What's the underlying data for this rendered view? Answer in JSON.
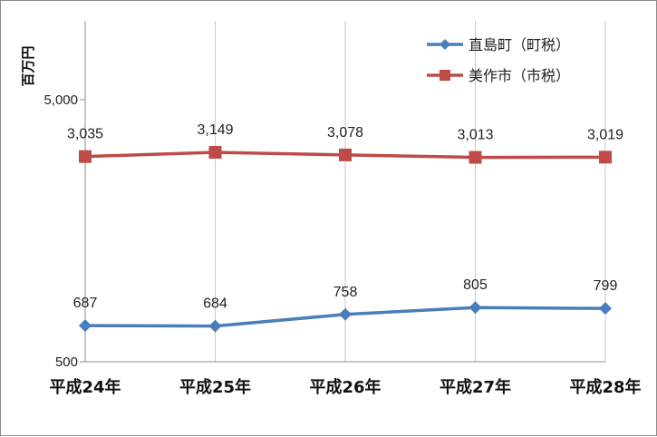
{
  "chart_data": {
    "type": "line",
    "ylabel": "百万円",
    "yscale": "log",
    "ylim": [
      500,
      10000
    ],
    "yticks": [
      "5,000",
      "500"
    ],
    "ytick_values": [
      5000,
      500
    ],
    "categories": [
      "平成24年",
      "平成25年",
      "平成26年",
      "平成27年",
      "平成28年"
    ],
    "series": [
      {
        "name": "直島町（町税）",
        "color": "#4a7ebb",
        "marker": "diamond",
        "values": [
          687,
          684,
          758,
          805,
          799
        ],
        "labels": [
          "687",
          "684",
          "758",
          "805",
          "799"
        ]
      },
      {
        "name": "美作市（市税）",
        "color": "#be4b48",
        "marker": "square",
        "values": [
          3035,
          3149,
          3078,
          3013,
          3019
        ],
        "labels": [
          "3,035",
          "3,149",
          "3,078",
          "3,013",
          "3,019"
        ]
      }
    ],
    "grid": "vertical",
    "legend_position": "top-right"
  }
}
